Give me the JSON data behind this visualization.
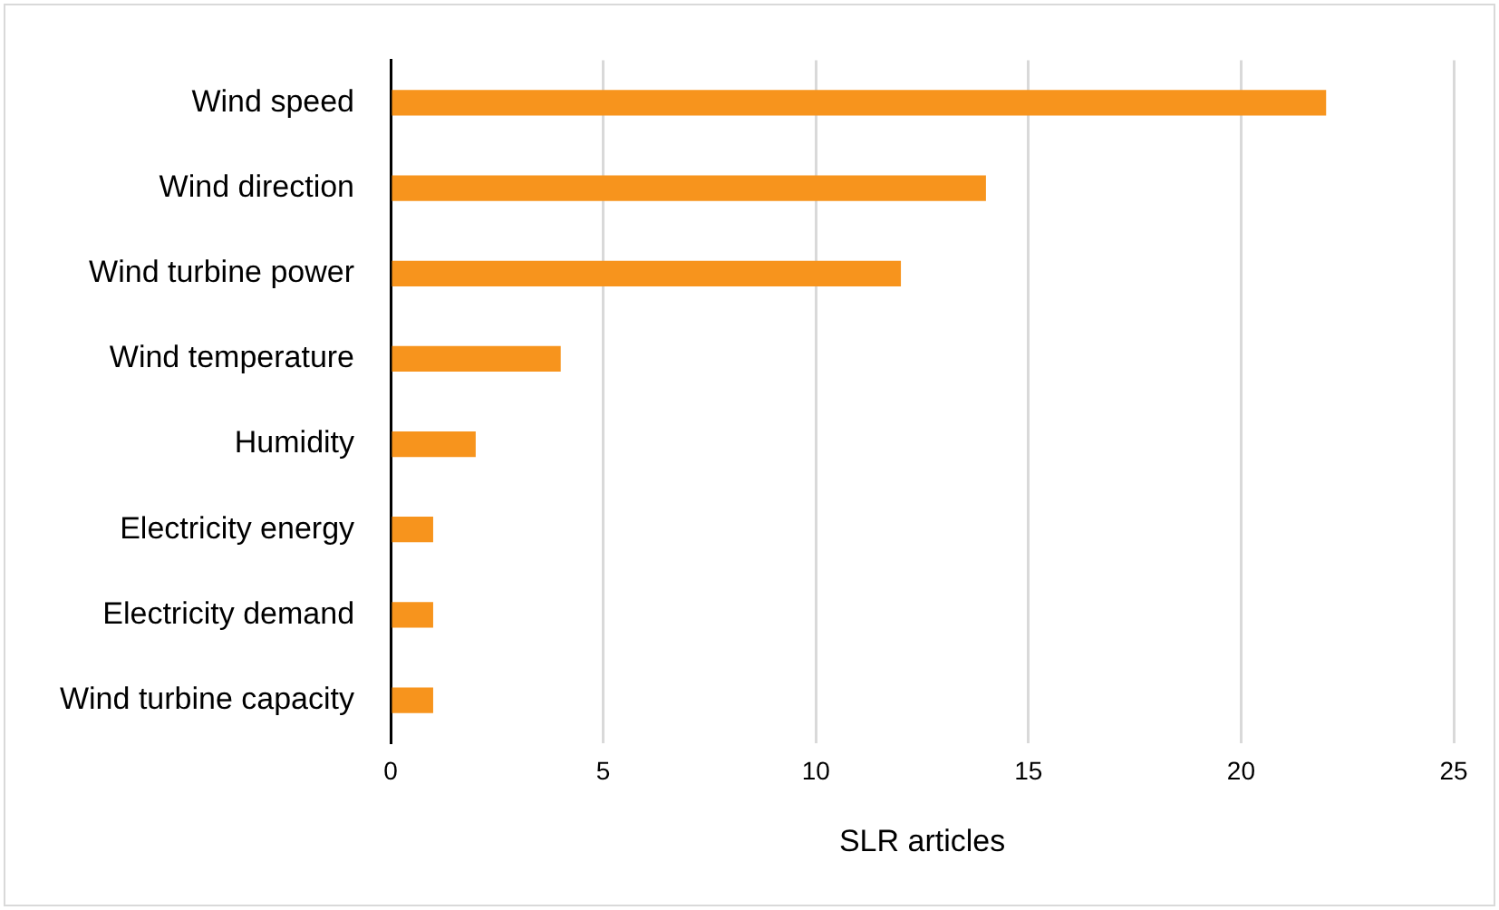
{
  "chart_data": {
    "type": "bar",
    "orientation": "horizontal",
    "categories": [
      "Wind speed",
      "Wind direction",
      "Wind turbine power",
      "Wind temperature",
      "Humidity",
      "Electricity energy",
      "Electricity demand",
      "Wind turbine capacity"
    ],
    "values": [
      22,
      14,
      12,
      4,
      2,
      1,
      1,
      1
    ],
    "color": "#f7941d",
    "xlabel": "SLR articles",
    "xlim": [
      0,
      25
    ],
    "xticks": [
      0,
      5,
      10,
      15,
      20,
      25
    ],
    "grid": "x",
    "legend": false
  }
}
